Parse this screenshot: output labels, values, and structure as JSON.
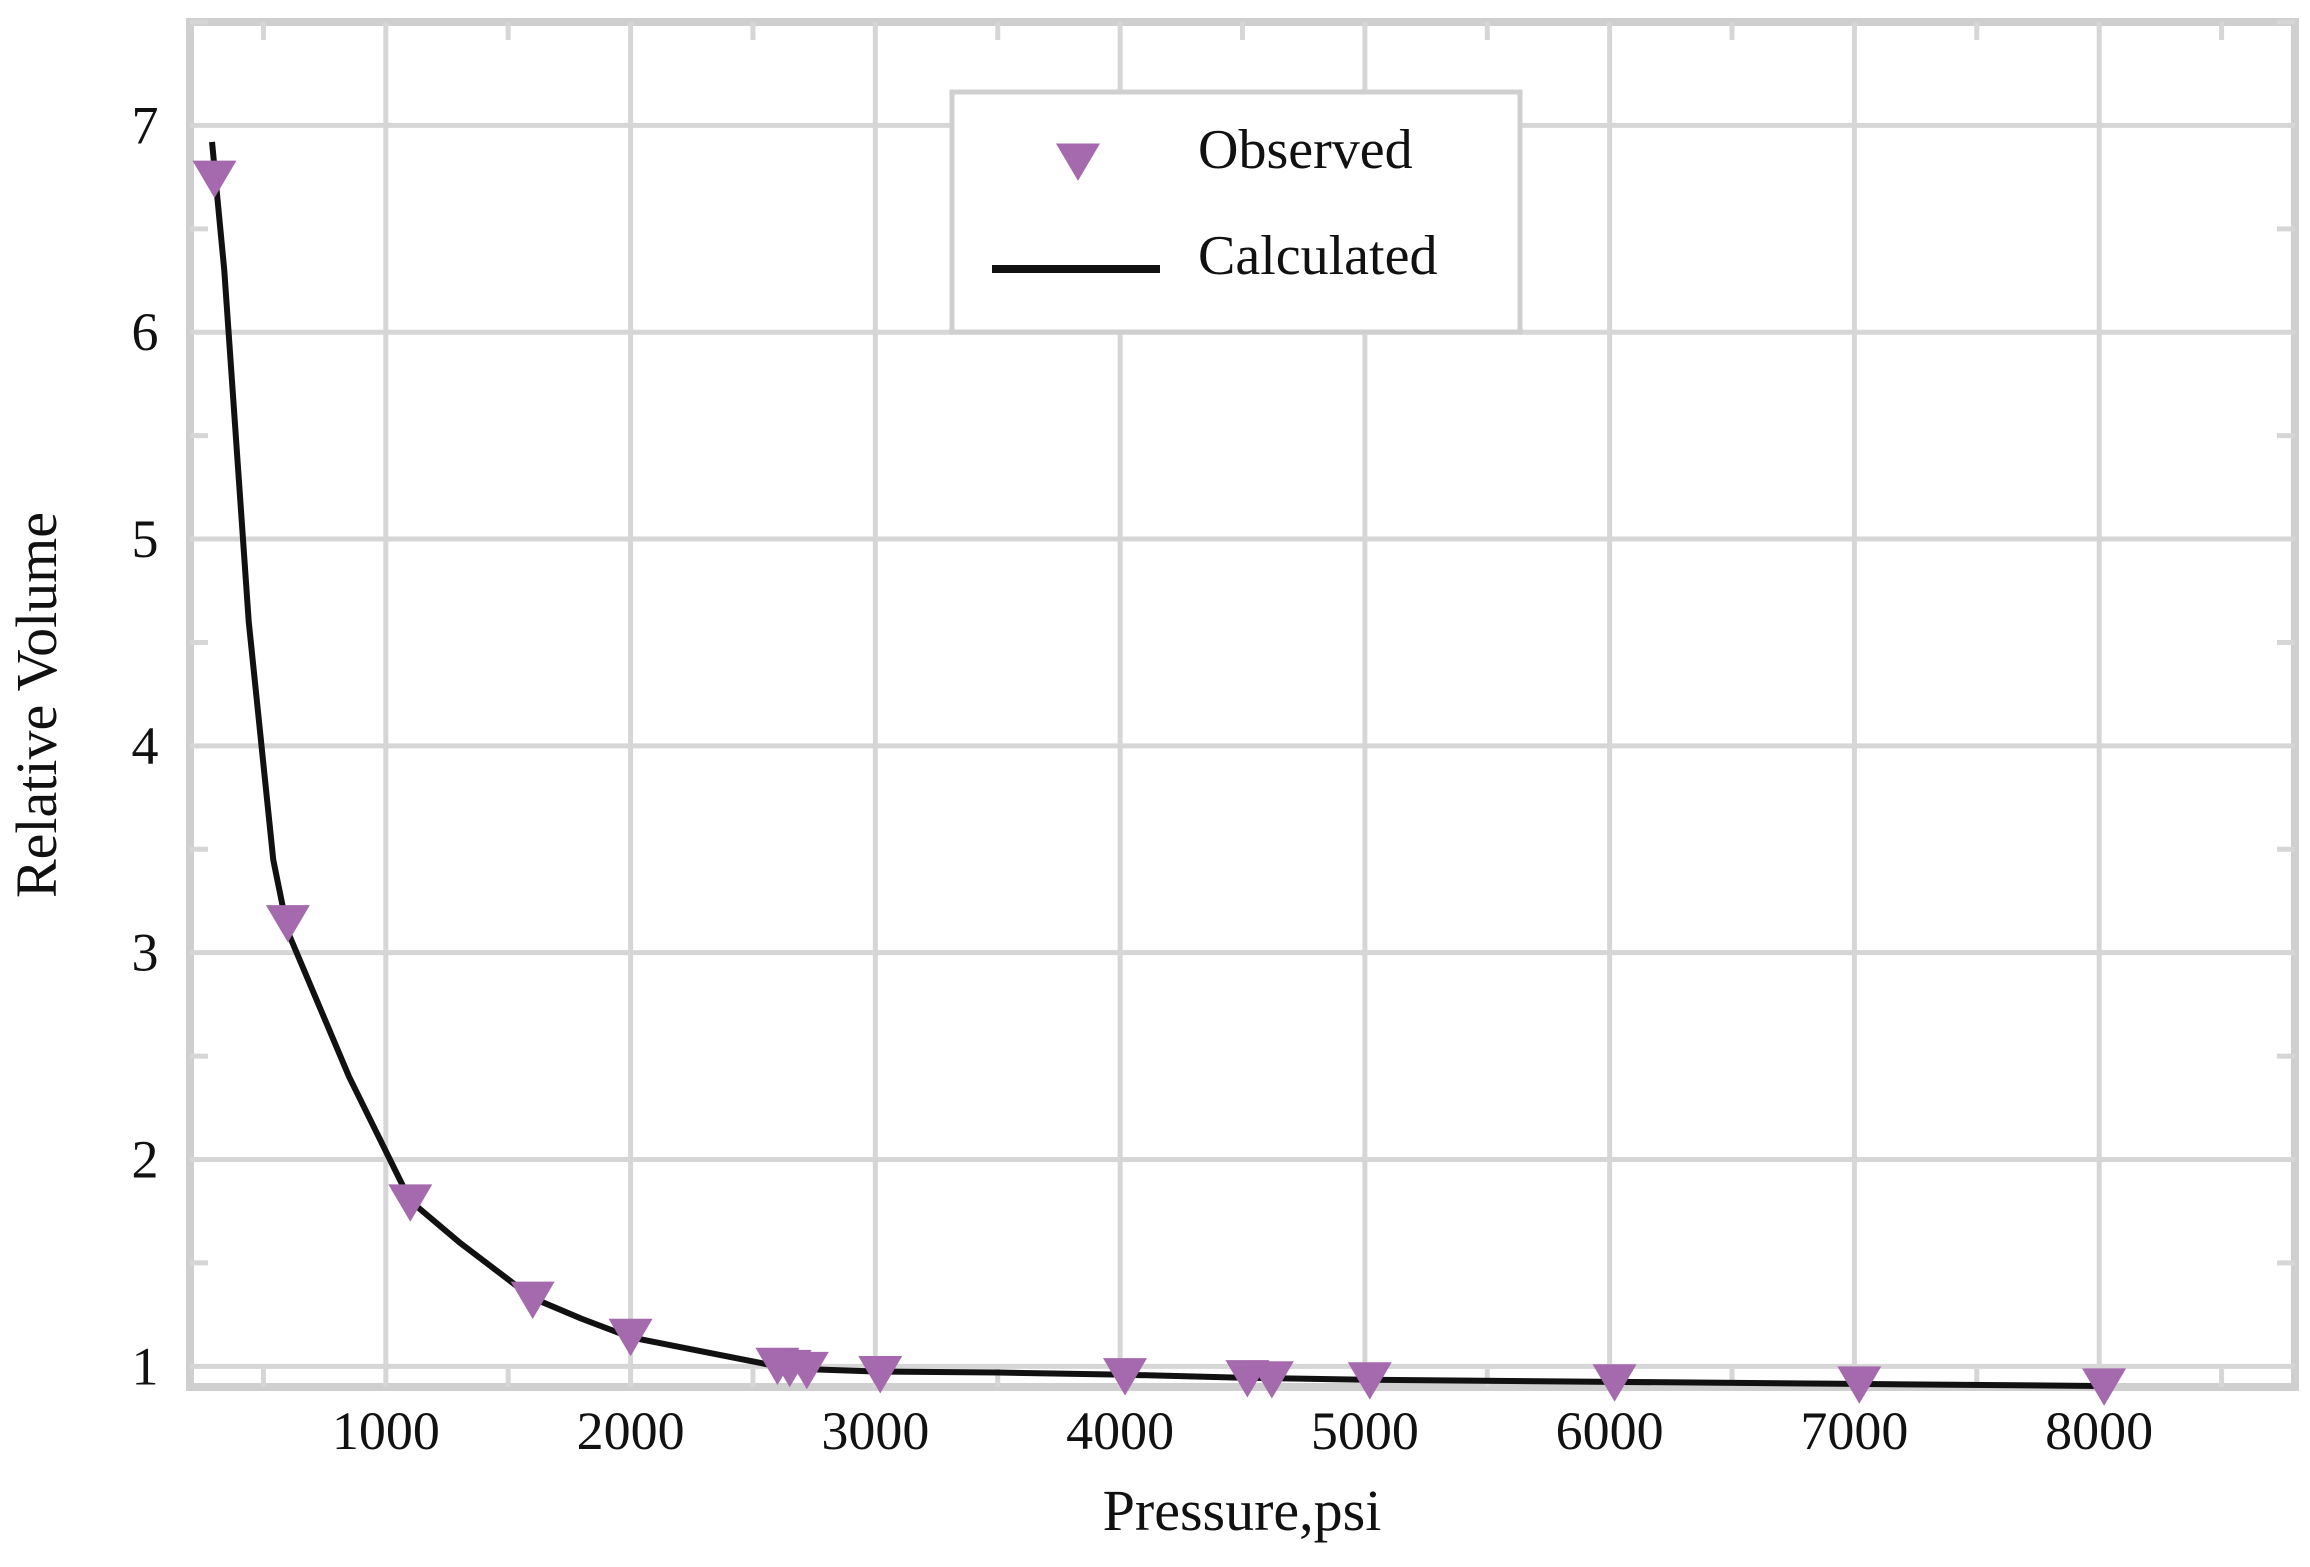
{
  "chart_data": {
    "type": "line",
    "title": "",
    "xlabel": "Pressure,psi",
    "ylabel": "Relative Volume",
    "xlim": [
      200,
      8800
    ],
    "ylim": [
      0.9,
      7.5
    ],
    "x_ticks": [
      1000,
      2000,
      3000,
      4000,
      5000,
      6000,
      7000,
      8000
    ],
    "y_ticks": [
      1,
      2,
      3,
      4,
      5,
      6,
      7
    ],
    "grid": true,
    "legend": {
      "placement": "top-center"
    },
    "colors": {
      "observed": "#a569ad",
      "calculated": "#111111",
      "grid": "#d6d6d6",
      "frame": "#cfcfcf"
    },
    "series": [
      {
        "name": "Observed",
        "style": "triangle-down-markers",
        "x": [
          300,
          600,
          1100,
          1600,
          2000,
          2600,
          2650,
          2720,
          3020,
          4020,
          4520,
          4620,
          5020,
          6020,
          7020,
          8020
        ],
        "y": [
          6.75,
          3.15,
          1.8,
          1.33,
          1.15,
          1.01,
          1.0,
          0.99,
          0.97,
          0.96,
          0.95,
          0.945,
          0.94,
          0.93,
          0.92,
          0.91
        ]
      },
      {
        "name": "Calculated",
        "style": "line",
        "x": [
          290,
          340,
          440,
          540,
          600,
          850,
          1100,
          1300,
          1600,
          1800,
          2000,
          2300,
          2600,
          2750,
          3000,
          3500,
          4000,
          4500,
          5000,
          6000,
          7000,
          8000
        ],
        "y": [
          6.92,
          6.3,
          4.6,
          3.45,
          3.1,
          2.4,
          1.8,
          1.6,
          1.33,
          1.23,
          1.14,
          1.07,
          1.0,
          0.985,
          0.975,
          0.97,
          0.96,
          0.945,
          0.935,
          0.925,
          0.915,
          0.905
        ]
      }
    ]
  }
}
